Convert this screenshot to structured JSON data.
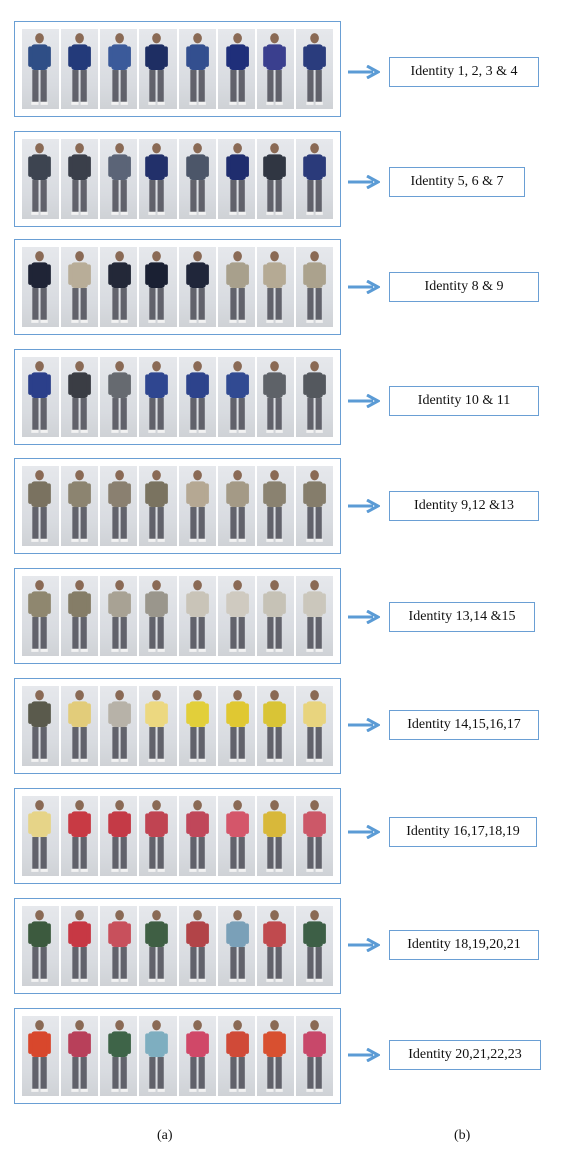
{
  "rows": [
    {
      "label": "Identity 1, 2, 3 & 4",
      "colors": [
        "#2f4e86",
        "#233a7a",
        "#3b5a9a",
        "#1e2e63",
        "#334f8f",
        "#1f2f7a",
        "#3a3f8e",
        "#2a3c7d"
      ]
    },
    {
      "label": "Identity 5, 6 & 7",
      "colors": [
        "#3d4450",
        "#3a3f4a",
        "#5b6477",
        "#22306a",
        "#4c5669",
        "#1f2d6e",
        "#303642",
        "#2a3a7a"
      ]
    },
    {
      "label": "Identity 8 & 9",
      "colors": [
        "#1f2436",
        "#b8ad98",
        "#232838",
        "#1a2033",
        "#20263a",
        "#a8a08c",
        "#b5aa94",
        "#aba28d"
      ]
    },
    {
      "label": "Identity 10 & 11",
      "colors": [
        "#2b3f8a",
        "#3a3d44",
        "#666a70",
        "#2f4690",
        "#2d438c",
        "#314a92",
        "#5e6268",
        "#54585e"
      ]
    },
    {
      "label": "Identity 9,12 &13",
      "colors": [
        "#7a7260",
        "#8c8470",
        "#8a8070",
        "#7a7360",
        "#b5a893",
        "#a49a86",
        "#8a8270",
        "#857d6b"
      ]
    },
    {
      "label": "Identity 13,14 &15",
      "colors": [
        "#8f876f",
        "#857d67",
        "#a8a294",
        "#9a968c",
        "#c9c4b8",
        "#cfcac0",
        "#c6c2b6",
        "#cbc7bc"
      ]
    },
    {
      "label": "Identity 14,15,16,17",
      "colors": [
        "#5a5a4c",
        "#e2cc7a",
        "#b7b2a8",
        "#ecd880",
        "#e2cf3a",
        "#e0c832",
        "#d9c436",
        "#e8d47e"
      ]
    },
    {
      "label": "Identity 16,17,18,19",
      "colors": [
        "#e6d488",
        "#c83a44",
        "#c43a46",
        "#c04452",
        "#c0475a",
        "#d4566a",
        "#d8b83a",
        "#cc5868"
      ]
    },
    {
      "label": "Identity 18,19,20,21",
      "colors": [
        "#3c5a3e",
        "#c73844",
        "#c8505c",
        "#3f5f44",
        "#b24448",
        "#7aa0b8",
        "#c04a4e",
        "#3d5f46"
      ]
    },
    {
      "label": "Identity 20,21,22,23",
      "colors": [
        "#d8472c",
        "#b8405a",
        "#3e6448",
        "#7eaec0",
        "#d04868",
        "#d04a38",
        "#d85030",
        "#c8486a"
      ]
    }
  ],
  "captions": {
    "a": "(a)",
    "b": "(b)"
  }
}
